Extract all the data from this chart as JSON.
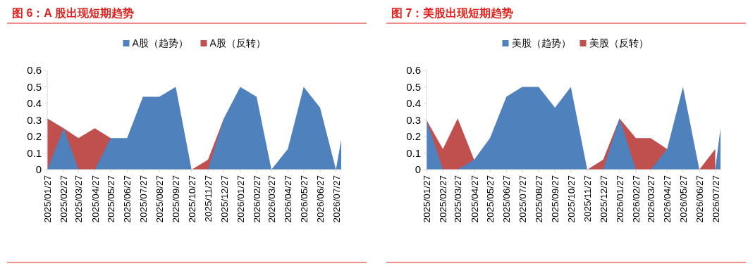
{
  "chart_data": [
    {
      "type": "area",
      "title": "图 6：A 股出现短期趋势",
      "x": [
        "2025-01-27",
        "2025-02-27",
        "2025-03-27",
        "2025-04-27",
        "2025-05-27",
        "2025-06-27",
        "2025-07-27",
        "2025-08-27",
        "2025-09-27",
        "2025-10-27",
        "2025-11-27",
        "2025-12-27",
        "2026-01-27",
        "2026-02-27",
        "2026-03-27",
        "2026-04-27",
        "2026-05-27",
        "2026-06-27",
        "2026-07-27",
        "2026-08-06"
      ],
      "series": [
        {
          "name": "A股（趋势）",
          "color": "#4f81bd",
          "values": [
            0,
            0.25,
            0,
            0,
            0.19,
            0.19,
            0.44,
            0.44,
            0.5,
            0,
            0,
            0.31,
            0.5,
            0.44,
            0,
            0.125,
            0.5,
            0.375,
            0,
            0.18
          ]
        },
        {
          "name": "A股（反转）",
          "color": "#c0504d",
          "values": [
            0.31,
            0.25,
            0.19,
            0.25,
            0.19,
            null,
            null,
            null,
            null,
            0,
            0.06,
            0.31,
            null,
            null,
            null,
            null,
            null,
            null,
            null,
            null
          ]
        }
      ],
      "ylim": [
        0,
        0.6
      ],
      "yticks": [
        0,
        0.1,
        0.2,
        0.3,
        0.4,
        0.5,
        0.6
      ],
      "xlim": [
        "2025-01-27",
        "2026-08-06"
      ],
      "xticks": [
        {
          "value": "2025-01-27",
          "label": "2025/01/27"
        },
        {
          "value": "2025-02-27",
          "label": "2025/02/27"
        },
        {
          "value": "2025-03-27",
          "label": "2025/03/27"
        },
        {
          "value": "2025-04-27",
          "label": "2025/04/27"
        },
        {
          "value": "2025-05-27",
          "label": "2025/05/27"
        },
        {
          "value": "2025-06-27",
          "label": "2025/06/27"
        },
        {
          "value": "2025-07-27",
          "label": "2025/07/27"
        },
        {
          "value": "2025-08-27",
          "label": "2025/08/27"
        },
        {
          "value": "2025-09-27",
          "label": "2025/09/27"
        },
        {
          "value": "2025-10-27",
          "label": "2025/10/27"
        },
        {
          "value": "2025-11-27",
          "label": "2025/11/27"
        },
        {
          "value": "2025-12-27",
          "label": "2025/12/27"
        },
        {
          "value": "2026-01-27",
          "label": "2026/01/27"
        },
        {
          "value": "2026-02-27",
          "label": "2026/02/27"
        },
        {
          "value": "2026-03-27",
          "label": "2026/03/27"
        },
        {
          "value": "2026-04-27",
          "label": "2026/04/27"
        },
        {
          "value": "2026-05-27",
          "label": "2026/05/27"
        },
        {
          "value": "2026-06-27",
          "label": "2026/06/27"
        },
        {
          "value": "2026-07-27",
          "label": "2026/07/27"
        }
      ],
      "legend": "top"
    },
    {
      "type": "area",
      "title": "图 7：美股出现短期趋势",
      "x": [
        "2025-01-27",
        "2025-02-27",
        "2025-03-27",
        "2025-04-27",
        "2025-05-27",
        "2025-06-27",
        "2025-07-27",
        "2025-08-27",
        "2025-09-27",
        "2025-10-27",
        "2025-11-27",
        "2025-12-27",
        "2026-01-27",
        "2026-02-27",
        "2026-03-27",
        "2026-04-27",
        "2026-05-27",
        "2026-06-27",
        "2026-07-27",
        "2026-08-06"
      ],
      "series": [
        {
          "name": "美股（趋势）",
          "color": "#4f81bd",
          "values": [
            0.3,
            0,
            0,
            0.06,
            0.19,
            0.44,
            0.5,
            0.5,
            0.375,
            0.5,
            0,
            0,
            0.31,
            0,
            0,
            0.125,
            0.5,
            0,
            0,
            0.25
          ]
        },
        {
          "name": "美股（反转）",
          "color": "#c0504d",
          "values": [
            0.3,
            0.125,
            0.31,
            0.06,
            null,
            null,
            null,
            null,
            null,
            null,
            0,
            0.06,
            0.31,
            0.19,
            0.19,
            0.125,
            null,
            0,
            0.125,
            null
          ]
        }
      ],
      "ylim": [
        0,
        0.6
      ],
      "yticks": [
        0,
        0.1,
        0.2,
        0.3,
        0.4,
        0.5,
        0.6
      ],
      "xlim": [
        "2025-01-27",
        "2026-08-06"
      ],
      "xticks": [
        {
          "value": "2025-01-27",
          "label": "2025/01/27"
        },
        {
          "value": "2025-02-27",
          "label": "2025/02/27"
        },
        {
          "value": "2025-03-27",
          "label": "2025/03/27"
        },
        {
          "value": "2025-04-27",
          "label": "2025/04/27"
        },
        {
          "value": "2025-05-27",
          "label": "2025/05/27"
        },
        {
          "value": "2025-06-27",
          "label": "2025/06/27"
        },
        {
          "value": "2025-07-27",
          "label": "2025/07/27"
        },
        {
          "value": "2025-08-27",
          "label": "2025/08/27"
        },
        {
          "value": "2025-09-27",
          "label": "2025/09/27"
        },
        {
          "value": "2025-10-27",
          "label": "2025/10/27"
        },
        {
          "value": "2025-11-27",
          "label": "2025/11/27"
        },
        {
          "value": "2025-12-27",
          "label": "2025/12/27"
        },
        {
          "value": "2026-01-27",
          "label": "2026/01/27"
        },
        {
          "value": "2026-02-27",
          "label": "2026/02/27"
        },
        {
          "value": "2026-03-27",
          "label": "2026/03/27"
        },
        {
          "value": "2026-04-27",
          "label": "2026/04/27"
        },
        {
          "value": "2026-05-27",
          "label": "2026/05/27"
        },
        {
          "value": "2026-06-27",
          "label": "2026/06/27"
        },
        {
          "value": "2026-07-27",
          "label": "2026/07/27"
        }
      ],
      "legend": "top"
    }
  ]
}
